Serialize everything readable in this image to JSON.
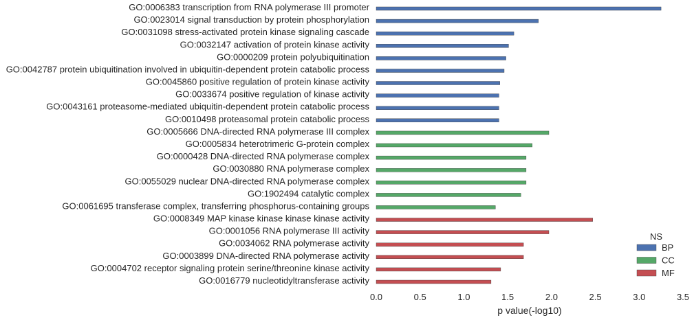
{
  "chart_data": {
    "type": "bar",
    "orientation": "horizontal",
    "xlabel": "p value(-log10)",
    "ylabel": "",
    "xlim": [
      0,
      3.5
    ],
    "xticks": [
      "0.0",
      "0.5",
      "1.0",
      "1.5",
      "2.0",
      "2.5",
      "3.0",
      "3.5"
    ],
    "grid": false,
    "legend": {
      "title": "NS",
      "placement": "bottom-right",
      "entries": [
        {
          "name": "BP",
          "color": "#4c72b0"
        },
        {
          "name": "CC",
          "color": "#55a868"
        },
        {
          "name": "MF",
          "color": "#c44e52"
        }
      ]
    },
    "categories": [
      {
        "label": "GO:0006383 transcription from RNA polymerase III promoter",
        "ns": "BP",
        "value": 3.25
      },
      {
        "label": "GO:0023014 signal transduction by protein phosphorylation",
        "ns": "BP",
        "value": 1.85
      },
      {
        "label": "GO:0031098 stress-activated protein kinase signaling cascade",
        "ns": "BP",
        "value": 1.57
      },
      {
        "label": "GO:0032147 activation of protein kinase activity",
        "ns": "BP",
        "value": 1.51
      },
      {
        "label": "GO:0000209 protein polyubiquitination",
        "ns": "BP",
        "value": 1.48
      },
      {
        "label": "GO:0042787 protein ubiquitination involved in ubiquitin-dependent protein catabolic process",
        "ns": "BP",
        "value": 1.46
      },
      {
        "label": "GO:0045860 positive regulation of protein kinase activity",
        "ns": "BP",
        "value": 1.41
      },
      {
        "label": "GO:0033674 positive regulation of kinase activity",
        "ns": "BP",
        "value": 1.4
      },
      {
        "label": "GO:0043161 proteasome-mediated ubiquitin-dependent protein catabolic process",
        "ns": "BP",
        "value": 1.4
      },
      {
        "label": "GO:0010498 proteasomal protein catabolic process",
        "ns": "BP",
        "value": 1.4
      },
      {
        "label": "GO:0005666 DNA-directed RNA polymerase III complex",
        "ns": "CC",
        "value": 1.97
      },
      {
        "label": "GO:0005834 heterotrimeric G-protein complex",
        "ns": "CC",
        "value": 1.78
      },
      {
        "label": "GO:0000428 DNA-directed RNA polymerase complex",
        "ns": "CC",
        "value": 1.71
      },
      {
        "label": "GO:0030880 RNA polymerase complex",
        "ns": "CC",
        "value": 1.71
      },
      {
        "label": "GO:0055029 nuclear DNA-directed RNA polymerase complex",
        "ns": "CC",
        "value": 1.71
      },
      {
        "label": "GO:1902494 catalytic complex",
        "ns": "CC",
        "value": 1.65
      },
      {
        "label": "GO:0061695 transferase complex, transferring phosphorus-containing groups",
        "ns": "CC",
        "value": 1.36
      },
      {
        "label": "GO:0008349 MAP kinase kinase kinase kinase activity",
        "ns": "MF",
        "value": 2.47
      },
      {
        "label": "GO:0001056 RNA polymerase III activity",
        "ns": "MF",
        "value": 1.97
      },
      {
        "label": "GO:0034062 RNA polymerase activity",
        "ns": "MF",
        "value": 1.68
      },
      {
        "label": "GO:0003899 DNA-directed RNA polymerase activity",
        "ns": "MF",
        "value": 1.68
      },
      {
        "label": "GO:0004702 receptor signaling protein serine/threonine kinase activity",
        "ns": "MF",
        "value": 1.42
      },
      {
        "label": "GO:0016779 nucleotidyltransferase activity",
        "ns": "MF",
        "value": 1.31
      }
    ]
  }
}
